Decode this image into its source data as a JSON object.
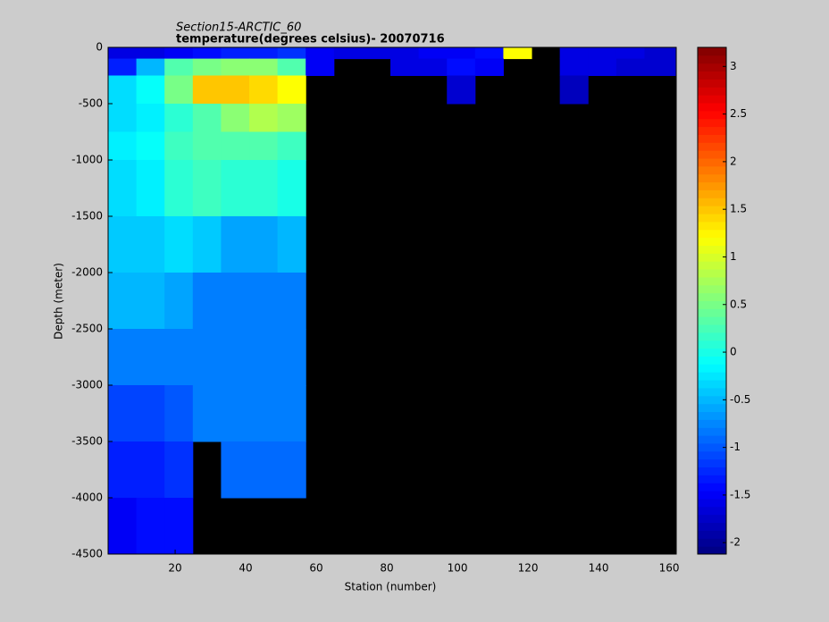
{
  "chart_data": {
    "type": "heatmap",
    "title": "Section15-ARCTIC_60",
    "subtitle": "temperature(degrees  celsius)- 20070716",
    "x_label": "Station (number)",
    "y_label": "Depth (meter)",
    "x_edges": [
      1,
      9,
      17,
      25,
      33,
      41,
      49,
      57,
      65,
      73,
      81,
      89,
      97,
      105,
      113,
      121,
      129,
      137,
      145,
      153,
      162
    ],
    "y_edges": [
      0,
      -100,
      -250,
      -500,
      -750,
      -1000,
      -1500,
      -2000,
      -2500,
      -3000,
      -3500,
      -4000,
      -4500
    ],
    "values": [
      [
        -1.6,
        -1.6,
        -1.5,
        -1.4,
        -1.3,
        -1.3,
        -1.2,
        -1.5,
        -1.6,
        -1.6,
        -1.6,
        -1.5,
        -1.5,
        -1.4,
        1.2,
        null,
        -1.6,
        -1.6,
        -1.6,
        -1.7
      ],
      [
        -1.3,
        -0.5,
        0.3,
        0.5,
        0.6,
        0.6,
        0.3,
        -1.5,
        null,
        null,
        -1.6,
        -1.6,
        -1.4,
        -1.5,
        null,
        null,
        -1.6,
        -1.6,
        -1.7,
        -1.7
      ],
      [
        -0.3,
        -0.1,
        0.5,
        1.5,
        1.5,
        1.4,
        1.2,
        null,
        null,
        null,
        null,
        null,
        -1.7,
        null,
        null,
        null,
        -1.8,
        null,
        null,
        null
      ],
      [
        -0.3,
        -0.2,
        0.1,
        0.3,
        0.6,
        0.8,
        0.7,
        null,
        null,
        null,
        null,
        null,
        null,
        null,
        null,
        null,
        null,
        null,
        null,
        null
      ],
      [
        -0.2,
        -0.1,
        0.2,
        0.3,
        0.3,
        0.3,
        0.2,
        null,
        null,
        null,
        null,
        null,
        null,
        null,
        null,
        null,
        null,
        null,
        null,
        null
      ],
      [
        -0.3,
        -0.2,
        0.1,
        0.2,
        0.1,
        0.1,
        0.0,
        null,
        null,
        null,
        null,
        null,
        null,
        null,
        null,
        null,
        null,
        null,
        null,
        null
      ],
      [
        -0.4,
        -0.4,
        -0.3,
        -0.4,
        -0.6,
        -0.6,
        -0.5,
        null,
        null,
        null,
        null,
        null,
        null,
        null,
        null,
        null,
        null,
        null,
        null,
        null
      ],
      [
        -0.5,
        -0.5,
        -0.6,
        -0.8,
        -0.8,
        -0.8,
        -0.8,
        null,
        null,
        null,
        null,
        null,
        null,
        null,
        null,
        null,
        null,
        null,
        null,
        null
      ],
      [
        -0.8,
        -0.8,
        -0.8,
        -0.8,
        -0.8,
        -0.8,
        -0.8,
        null,
        null,
        null,
        null,
        null,
        null,
        null,
        null,
        null,
        null,
        null,
        null,
        null
      ],
      [
        -1.1,
        -1.1,
        -1.0,
        -0.8,
        -0.8,
        -0.8,
        -0.8,
        null,
        null,
        null,
        null,
        null,
        null,
        null,
        null,
        null,
        null,
        null,
        null,
        null
      ],
      [
        -1.3,
        -1.3,
        -1.2,
        null,
        -0.9,
        -0.9,
        -0.9,
        null,
        null,
        null,
        null,
        null,
        null,
        null,
        null,
        null,
        null,
        null,
        null,
        null
      ],
      [
        -1.5,
        -1.4,
        -1.4,
        null,
        null,
        null,
        null,
        null,
        null,
        null,
        null,
        null,
        null,
        null,
        null,
        null,
        null,
        null,
        null,
        null
      ]
    ],
    "xlim": [
      1,
      162
    ],
    "ylim": [
      -4500,
      0
    ],
    "xticks": [
      20,
      40,
      60,
      80,
      100,
      120,
      140,
      160
    ],
    "yticks": [
      0,
      -500,
      -1000,
      -1500,
      -2000,
      -2500,
      -3000,
      -3500,
      -4000,
      -4500
    ],
    "clim": [
      -2.12,
      3.2
    ],
    "cticks": [
      -2,
      -1.5,
      -1,
      -0.5,
      0,
      0.5,
      1,
      1.5,
      2,
      2.5,
      3
    ],
    "colormap": "jet",
    "background": "#000000"
  }
}
